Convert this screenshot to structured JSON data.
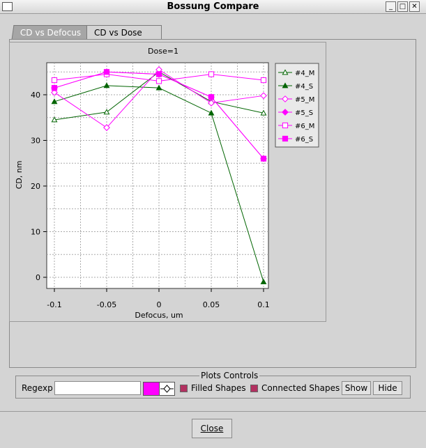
{
  "window": {
    "title": "Bossung Compare"
  },
  "tabs": [
    {
      "label": "CD vs Defocus"
    },
    {
      "label": "CD vs Dose"
    }
  ],
  "plot_controls": {
    "legend": "Plots Controls",
    "regexp_label": "Regexp",
    "regexp_value": "",
    "color": "#ff00ff",
    "filled_shapes_label": "Filled Shapes",
    "connected_shapes_label": "Connected Shapes",
    "show_label": "Show",
    "hide_label": "Hide"
  },
  "close_label": "Close",
  "chart_data": {
    "type": "line",
    "title": "Dose=1",
    "xlabel": "Defocus, um",
    "ylabel": "CD, nm",
    "x": [
      -0.1,
      -0.05,
      0,
      0.05,
      0.1
    ],
    "xlim": [
      -0.1,
      0.1
    ],
    "ylim": [
      -2,
      47
    ],
    "xticks": [
      "-0.1",
      "-0.05",
      "0",
      "0.05",
      "0.1"
    ],
    "yticks": [
      "0",
      "10",
      "20",
      "30",
      "40"
    ],
    "grid": true,
    "legend_position": "right",
    "series": [
      {
        "name": "#4_M",
        "color": "#006400",
        "marker": "triangle-open",
        "values": [
          34.5,
          36.2,
          45,
          38.5,
          36
        ]
      },
      {
        "name": "#4_S",
        "color": "#006400",
        "marker": "triangle-filled",
        "values": [
          38.5,
          42,
          41.5,
          36,
          -1
        ]
      },
      {
        "name": "#5_M",
        "color": "#ff00ff",
        "marker": "diamond-open",
        "values": [
          40.5,
          32.8,
          45.5,
          38.2,
          39.8
        ]
      },
      {
        "name": "#5_S",
        "color": "#ff00ff",
        "marker": "diamond-filled",
        "values": [
          41.5,
          45,
          44.5,
          39.5,
          26
        ]
      },
      {
        "name": "#6_M",
        "color": "#ff00ff",
        "marker": "square-open",
        "values": [
          43.2,
          44.5,
          43,
          44.5,
          43.2
        ]
      },
      {
        "name": "#6_S",
        "color": "#ff00ff",
        "marker": "square-filled",
        "values": [
          41.5,
          45,
          44.5,
          39.5,
          26
        ]
      }
    ]
  }
}
